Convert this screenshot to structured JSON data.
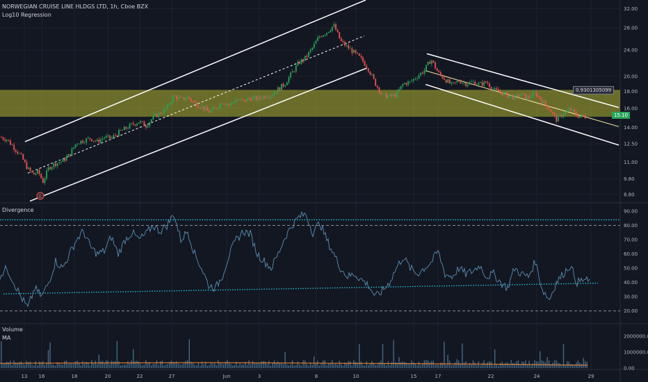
{
  "header": {
    "symbol_line": "NORWEGIAN CRUISE LINE HLDGS LTD, 1h, Cboe BZX",
    "indicator": "Log10 Regression"
  },
  "panes": {
    "divergence_label": "Divergence",
    "volume_label": "Volume",
    "ma_label": "MA"
  },
  "price_tag": "15.10",
  "regression_value": "0.9301305099",
  "colors": {
    "background": "#131722",
    "up": "#26a65b",
    "down": "#ef5350",
    "zone": "#d5d633",
    "cyan": "#26c6da",
    "osc": "#5b8fb3"
  },
  "chart_data": [
    {
      "type": "candlestick",
      "title": "NORWEGIAN CRUISE LINE HLDGS LTD, 1h, Cboe BZX",
      "y_scale": "log",
      "y_ticks": [
        "32.00",
        "28.00",
        "24.00",
        "20.00",
        "18.00",
        "16.00",
        "14.00",
        "12.50",
        "11.00",
        "9.80",
        "8.80"
      ],
      "y_tick_values": [
        32,
        28,
        24,
        20,
        18,
        16,
        14,
        12.5,
        11,
        9.8,
        8.8
      ],
      "ylim": [
        8.3,
        34
      ],
      "x_ticks": [
        "13",
        "16",
        "18",
        "20",
        "22",
        "27",
        "Jun",
        "3",
        "8",
        "10",
        "15",
        "17",
        "22",
        "24",
        "29"
      ],
      "x_tick_pos": [
        35,
        60,
        107,
        155,
        201,
        247,
        326,
        373,
        455,
        512,
        595,
        630,
        706,
        772,
        850
      ],
      "highlight_zone": [
        15.1,
        18.2
      ],
      "last_price": 15.1,
      "close_path": [
        [
          0,
          13.1
        ],
        [
          10,
          12.9
        ],
        [
          20,
          12.2
        ],
        [
          30,
          11.5
        ],
        [
          40,
          10.5
        ],
        [
          48,
          10.1
        ],
        [
          55,
          10.3
        ],
        [
          62,
          9.6
        ],
        [
          70,
          10.6
        ],
        [
          80,
          10.9
        ],
        [
          90,
          11.1
        ],
        [
          100,
          11.6
        ],
        [
          110,
          12.6
        ],
        [
          120,
          12.8
        ],
        [
          130,
          13.0
        ],
        [
          140,
          12.7
        ],
        [
          150,
          13.1
        ],
        [
          160,
          13.0
        ],
        [
          170,
          13.5
        ],
        [
          180,
          13.9
        ],
        [
          190,
          14.3
        ],
        [
          200,
          14.6
        ],
        [
          210,
          14.2
        ],
        [
          220,
          15.0
        ],
        [
          230,
          15.5
        ],
        [
          240,
          16.0
        ],
        [
          250,
          17.5
        ],
        [
          260,
          17.0
        ],
        [
          270,
          17.3
        ],
        [
          280,
          16.6
        ],
        [
          290,
          16.2
        ],
        [
          300,
          15.6
        ],
        [
          310,
          16.0
        ],
        [
          320,
          16.8
        ],
        [
          330,
          16.4
        ],
        [
          340,
          17.0
        ],
        [
          350,
          16.8
        ],
        [
          360,
          17.2
        ],
        [
          370,
          17.1
        ],
        [
          380,
          17.4
        ],
        [
          390,
          17.6
        ],
        [
          400,
          18.3
        ],
        [
          410,
          19.0
        ],
        [
          420,
          20.5
        ],
        [
          430,
          22.0
        ],
        [
          440,
          22.8
        ],
        [
          450,
          24.5
        ],
        [
          460,
          26.5
        ],
        [
          470,
          27.2
        ],
        [
          480,
          28.5
        ],
        [
          490,
          25.5
        ],
        [
          500,
          24.5
        ],
        [
          510,
          23.5
        ],
        [
          520,
          22.5
        ],
        [
          530,
          21.0
        ],
        [
          540,
          19.0
        ],
        [
          550,
          17.5
        ],
        [
          560,
          17.4
        ],
        [
          570,
          17.6
        ],
        [
          580,
          19.0
        ],
        [
          590,
          19.2
        ],
        [
          600,
          20.0
        ],
        [
          610,
          20.8
        ],
        [
          620,
          22.5
        ],
        [
          630,
          20.5
        ],
        [
          640,
          19.6
        ],
        [
          650,
          18.8
        ],
        [
          660,
          19.4
        ],
        [
          670,
          19.0
        ],
        [
          680,
          19.2
        ],
        [
          690,
          18.9
        ],
        [
          700,
          19.2
        ],
        [
          710,
          18.2
        ],
        [
          720,
          17.9
        ],
        [
          730,
          17.5
        ],
        [
          740,
          17.3
        ],
        [
          750,
          17.6
        ],
        [
          760,
          17.2
        ],
        [
          770,
          17.8
        ],
        [
          780,
          16.8
        ],
        [
          790,
          16.0
        ],
        [
          800,
          14.8
        ],
        [
          810,
          15.4
        ],
        [
          820,
          15.9
        ],
        [
          830,
          15.2
        ],
        [
          840,
          15.1
        ]
      ],
      "annotations": [
        "0.9301305099",
        "E"
      ]
    },
    {
      "type": "line",
      "title": "Divergence",
      "y_ticks": [
        "90.00",
        "80.00",
        "70.00",
        "60.00",
        "50.00",
        "40.00",
        "30.00",
        "20.00"
      ],
      "y_tick_values": [
        90,
        80,
        70,
        60,
        50,
        40,
        30,
        20
      ],
      "ylim": [
        15,
        92
      ],
      "reference_lines": [
        80,
        20
      ],
      "upper_band": 84,
      "trend_line": [
        [
          5,
          32
        ],
        [
          860,
          39.5
        ]
      ],
      "series_path": [
        [
          0,
          45
        ],
        [
          10,
          50
        ],
        [
          20,
          40
        ],
        [
          30,
          30
        ],
        [
          40,
          22
        ],
        [
          50,
          36
        ],
        [
          60,
          30
        ],
        [
          70,
          40
        ],
        [
          80,
          55
        ],
        [
          90,
          50
        ],
        [
          100,
          60
        ],
        [
          110,
          70
        ],
        [
          120,
          76
        ],
        [
          130,
          65
        ],
        [
          140,
          60
        ],
        [
          150,
          62
        ],
        [
          160,
          72
        ],
        [
          170,
          60
        ],
        [
          180,
          70
        ],
        [
          190,
          75
        ],
        [
          200,
          70
        ],
        [
          210,
          74
        ],
        [
          220,
          80
        ],
        [
          230,
          76
        ],
        [
          240,
          80
        ],
        [
          250,
          88
        ],
        [
          260,
          70
        ],
        [
          270,
          76
        ],
        [
          280,
          60
        ],
        [
          290,
          50
        ],
        [
          300,
          38
        ],
        [
          310,
          36
        ],
        [
          320,
          45
        ],
        [
          330,
          60
        ],
        [
          340,
          70
        ],
        [
          350,
          76
        ],
        [
          360,
          74
        ],
        [
          370,
          60
        ],
        [
          380,
          55
        ],
        [
          390,
          50
        ],
        [
          400,
          60
        ],
        [
          410,
          72
        ],
        [
          420,
          80
        ],
        [
          430,
          86
        ],
        [
          440,
          88
        ],
        [
          450,
          75
        ],
        [
          460,
          82
        ],
        [
          470,
          70
        ],
        [
          480,
          60
        ],
        [
          490,
          50
        ],
        [
          500,
          44
        ],
        [
          510,
          46
        ],
        [
          520,
          42
        ],
        [
          530,
          38
        ],
        [
          540,
          30
        ],
        [
          550,
          34
        ],
        [
          560,
          40
        ],
        [
          570,
          50
        ],
        [
          580,
          58
        ],
        [
          590,
          50
        ],
        [
          600,
          46
        ],
        [
          610,
          50
        ],
        [
          620,
          54
        ],
        [
          630,
          62
        ],
        [
          640,
          46
        ],
        [
          650,
          44
        ],
        [
          660,
          50
        ],
        [
          670,
          46
        ],
        [
          680,
          48
        ],
        [
          690,
          52
        ],
        [
          700,
          44
        ],
        [
          710,
          46
        ],
        [
          720,
          40
        ],
        [
          730,
          36
        ],
        [
          740,
          50
        ],
        [
          750,
          46
        ],
        [
          760,
          44
        ],
        [
          770,
          55
        ],
        [
          780,
          35
        ],
        [
          790,
          28
        ],
        [
          800,
          40
        ],
        [
          810,
          46
        ],
        [
          820,
          52
        ],
        [
          830,
          40
        ],
        [
          840,
          42
        ],
        [
          850,
          40
        ]
      ]
    },
    {
      "type": "bar",
      "title": "Volume",
      "y_ticks": [
        "2000000.00",
        "1000000.00",
        "0.00"
      ],
      "y_tick_values": [
        2000000,
        1000000,
        0
      ],
      "ylim": [
        0,
        2600000
      ],
      "ma_label": "MA"
    }
  ]
}
